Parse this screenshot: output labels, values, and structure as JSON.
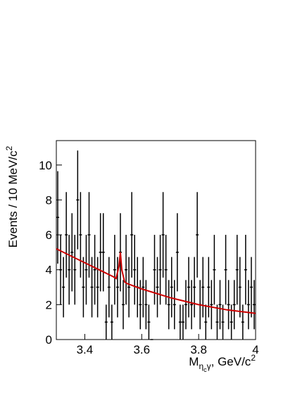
{
  "chart_data": {
    "type": "histogram_errorbars",
    "y_label": {
      "text": "Events / 10 MeV/c",
      "sup": "2"
    },
    "x_label": {
      "main": "M",
      "sub": "η",
      "subsub": "c",
      "sub_after": "γ",
      "rest": ", GeV/c",
      "sup": "2"
    },
    "bins": [
      3.3,
      3.31,
      3.32,
      3.33,
      3.34,
      3.35,
      3.36,
      3.37,
      3.38,
      3.39,
      3.4,
      3.41,
      3.42,
      3.43,
      3.44,
      3.45,
      3.46,
      3.47,
      3.48,
      3.49,
      3.5,
      3.51,
      3.52,
      3.53,
      3.54,
      3.55,
      3.56,
      3.57,
      3.58,
      3.59,
      3.6,
      3.61,
      3.62,
      3.63,
      3.64,
      3.65,
      3.66,
      3.67,
      3.68,
      3.69,
      3.7,
      3.71,
      3.72,
      3.73,
      3.74,
      3.75,
      3.76,
      3.77,
      3.78,
      3.79,
      3.8,
      3.81,
      3.82,
      3.83,
      3.84,
      3.85,
      3.86,
      3.87,
      3.88,
      3.89,
      3.9,
      3.91,
      3.92,
      3.93,
      3.94,
      3.95,
      3.96,
      3.97,
      3.98,
      3.99,
      4.0
    ],
    "values": [
      7,
      4,
      3,
      6,
      4,
      5,
      4,
      8,
      6,
      3,
      4,
      6,
      3,
      4,
      3,
      5,
      5,
      1,
      3,
      1,
      4,
      3,
      5,
      2,
      4,
      3,
      6,
      4,
      3,
      2,
      3,
      2,
      1,
      0,
      4,
      3,
      4,
      6,
      4,
      2,
      3,
      2,
      5,
      1,
      1,
      2,
      3,
      2,
      3,
      6,
      2,
      3,
      1,
      3,
      2,
      4,
      1,
      2,
      1,
      4,
      2,
      1,
      2,
      4,
      3,
      1,
      4,
      2,
      3,
      2
    ],
    "errors": [
      2.65,
      2,
      1.73,
      2.45,
      2,
      2.24,
      2,
      2.83,
      2.45,
      1.73,
      2,
      2.45,
      1.73,
      2,
      1.73,
      2.24,
      2.24,
      1,
      1.73,
      1,
      2,
      1.73,
      2.24,
      1.41,
      2,
      1.73,
      2.45,
      2,
      1.73,
      1.41,
      1.73,
      1.41,
      1,
      0,
      2,
      1.73,
      2,
      2.45,
      2,
      1.41,
      1.73,
      1.41,
      2.24,
      1,
      1,
      1.41,
      1.73,
      1.41,
      1.73,
      2.45,
      1.41,
      1.73,
      1,
      1.73,
      1.41,
      2,
      1,
      1.41,
      1,
      2,
      1.41,
      1,
      1.41,
      2,
      1.73,
      1,
      2,
      1.41,
      1.73,
      1.41
    ],
    "color": "#000000",
    "fit": {
      "color": "#cc0000",
      "x": [
        3.3,
        3.35,
        3.4,
        3.45,
        3.5,
        3.51,
        3.52,
        3.525,
        3.53,
        3.54,
        3.55,
        3.6,
        3.7,
        3.8,
        3.9,
        4.0
      ],
      "y": [
        5.2,
        4.8,
        4.4,
        4.0,
        3.6,
        3.5,
        4.2,
        5.0,
        4.0,
        3.3,
        3.2,
        2.9,
        2.4,
        2.0,
        1.7,
        1.5
      ]
    },
    "xlim": [
      3.3,
      4.0
    ],
    "xticks": [
      3.4,
      3.6,
      3.8,
      4
    ],
    "ylim": [
      0,
      11.4
    ],
    "yticks": [
      0,
      2,
      4,
      6,
      8,
      10
    ]
  }
}
